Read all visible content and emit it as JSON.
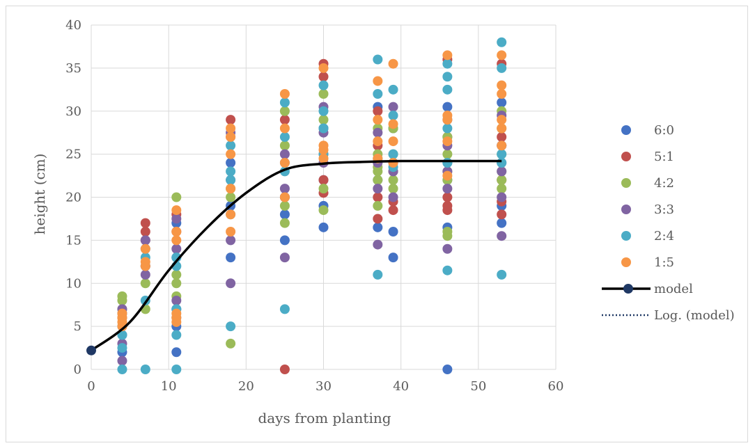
{
  "chart_data": {
    "type": "scatter",
    "xlabel": "days from planting",
    "ylabel": "height (cm)",
    "xlim": [
      0,
      60
    ],
    "ylim": [
      0,
      40
    ],
    "x_ticks": [
      "0",
      "10",
      "20",
      "30",
      "40",
      "50",
      "60"
    ],
    "y_ticks": [
      "0",
      "5",
      "10",
      "15",
      "20",
      "25",
      "30",
      "35",
      "40"
    ],
    "grid": true,
    "legend_position": "right",
    "series": [
      {
        "name": "6:0",
        "color": "#4472c4",
        "points": [
          [
            4,
            2
          ],
          [
            4,
            5
          ],
          [
            4,
            6.5
          ],
          [
            7,
            12
          ],
          [
            7,
            14
          ],
          [
            11,
            2
          ],
          [
            11,
            5
          ],
          [
            11,
            7
          ],
          [
            11,
            13
          ],
          [
            11,
            17
          ],
          [
            18,
            13
          ],
          [
            18,
            19
          ],
          [
            18,
            24
          ],
          [
            25,
            15
          ],
          [
            25,
            18
          ],
          [
            25,
            20
          ],
          [
            25,
            24
          ],
          [
            30,
            16.5
          ],
          [
            30,
            19
          ],
          [
            30,
            22
          ],
          [
            30,
            25
          ],
          [
            30,
            28
          ],
          [
            37,
            16.5
          ],
          [
            37,
            22
          ],
          [
            37,
            30.5
          ],
          [
            39,
            13
          ],
          [
            39,
            16
          ],
          [
            39,
            24
          ],
          [
            39,
            28
          ],
          [
            46,
            0
          ],
          [
            46,
            16.5
          ],
          [
            46,
            22
          ],
          [
            46,
            24
          ],
          [
            46,
            30.5
          ],
          [
            53,
            17
          ],
          [
            53,
            19
          ],
          [
            53,
            24
          ],
          [
            53,
            26
          ],
          [
            53,
            31
          ]
        ]
      },
      {
        "name": "5:1",
        "color": "#c0504d",
        "points": [
          [
            4,
            6
          ],
          [
            7,
            15
          ],
          [
            7,
            16
          ],
          [
            7,
            17
          ],
          [
            11,
            16
          ],
          [
            11,
            18
          ],
          [
            18,
            27
          ],
          [
            18,
            29
          ],
          [
            25,
            0
          ],
          [
            25,
            20
          ],
          [
            25,
            29
          ],
          [
            30,
            20.5
          ],
          [
            30,
            22
          ],
          [
            30,
            34
          ],
          [
            30,
            35.5
          ],
          [
            37,
            17.5
          ],
          [
            37,
            20
          ],
          [
            37,
            26
          ],
          [
            37,
            30
          ],
          [
            39,
            18.5
          ],
          [
            39,
            19.5
          ],
          [
            39,
            23
          ],
          [
            46,
            18.5
          ],
          [
            46,
            19
          ],
          [
            46,
            20
          ],
          [
            46,
            27
          ],
          [
            46,
            36
          ],
          [
            53,
            18
          ],
          [
            53,
            19.5
          ],
          [
            53,
            22
          ],
          [
            53,
            27
          ],
          [
            53,
            35.5
          ]
        ]
      },
      {
        "name": "4:2",
        "color": "#9bbb59",
        "points": [
          [
            4,
            7
          ],
          [
            4,
            8
          ],
          [
            4,
            8.5
          ],
          [
            7,
            7
          ],
          [
            7,
            10
          ],
          [
            11,
            8.5
          ],
          [
            11,
            10
          ],
          [
            11,
            11
          ],
          [
            11,
            20
          ],
          [
            18,
            3
          ],
          [
            18,
            20
          ],
          [
            18,
            21
          ],
          [
            25,
            17
          ],
          [
            25,
            19
          ],
          [
            25,
            26
          ],
          [
            25,
            30
          ],
          [
            30,
            18.5
          ],
          [
            30,
            21
          ],
          [
            30,
            29
          ],
          [
            30,
            32
          ],
          [
            37,
            19
          ],
          [
            37,
            22
          ],
          [
            37,
            23
          ],
          [
            37,
            23.5
          ],
          [
            37,
            25
          ],
          [
            37,
            28
          ],
          [
            39,
            21
          ],
          [
            39,
            22
          ],
          [
            39,
            25
          ],
          [
            39,
            28
          ],
          [
            46,
            15.5
          ],
          [
            46,
            16
          ],
          [
            46,
            22
          ],
          [
            46,
            23
          ],
          [
            46,
            25
          ],
          [
            46,
            27
          ],
          [
            53,
            21
          ],
          [
            53,
            22
          ],
          [
            53,
            23
          ],
          [
            53,
            25
          ],
          [
            53,
            28
          ],
          [
            53,
            30
          ]
        ]
      },
      {
        "name": "3:3",
        "color": "#8064a2",
        "points": [
          [
            4,
            1
          ],
          [
            4,
            3
          ],
          [
            4,
            4
          ],
          [
            4,
            7
          ],
          [
            7,
            11
          ],
          [
            7,
            12
          ],
          [
            7,
            15
          ],
          [
            11,
            6
          ],
          [
            11,
            8
          ],
          [
            11,
            14
          ],
          [
            11,
            17.5
          ],
          [
            18,
            10
          ],
          [
            18,
            15
          ],
          [
            18,
            22
          ],
          [
            18,
            27.5
          ],
          [
            25,
            13
          ],
          [
            25,
            21
          ],
          [
            25,
            25
          ],
          [
            30,
            24
          ],
          [
            30,
            27.5
          ],
          [
            30,
            30.5
          ],
          [
            37,
            14.5
          ],
          [
            37,
            21
          ],
          [
            37,
            24
          ],
          [
            37,
            27.5
          ],
          [
            39,
            20
          ],
          [
            39,
            23
          ],
          [
            39,
            24
          ],
          [
            39,
            30.5
          ],
          [
            46,
            14
          ],
          [
            46,
            21
          ],
          [
            46,
            23
          ],
          [
            46,
            26
          ],
          [
            46,
            29
          ],
          [
            53,
            15.5
          ],
          [
            53,
            20
          ],
          [
            53,
            23
          ],
          [
            53,
            26
          ],
          [
            53,
            29.5
          ]
        ]
      },
      {
        "name": "2:4",
        "color": "#4bacc6",
        "points": [
          [
            4,
            0
          ],
          [
            4,
            2.5
          ],
          [
            4,
            4
          ],
          [
            7,
            0
          ],
          [
            7,
            8
          ],
          [
            7,
            13
          ],
          [
            11,
            0
          ],
          [
            11,
            4
          ],
          [
            11,
            7
          ],
          [
            11,
            12
          ],
          [
            11,
            13
          ],
          [
            18,
            5
          ],
          [
            18,
            18
          ],
          [
            18,
            22
          ],
          [
            18,
            23
          ],
          [
            18,
            26
          ],
          [
            25,
            7
          ],
          [
            25,
            23
          ],
          [
            25,
            27
          ],
          [
            25,
            31
          ],
          [
            30,
            25
          ],
          [
            30,
            28
          ],
          [
            30,
            30
          ],
          [
            30,
            33
          ],
          [
            37,
            11
          ],
          [
            37,
            24.5
          ],
          [
            37,
            32
          ],
          [
            37,
            36
          ],
          [
            39,
            23.5
          ],
          [
            39,
            25
          ],
          [
            39,
            29.5
          ],
          [
            39,
            32.5
          ],
          [
            46,
            11.5
          ],
          [
            46,
            24
          ],
          [
            46,
            28
          ],
          [
            46,
            32.5
          ],
          [
            46,
            34
          ],
          [
            46,
            35.5
          ],
          [
            53,
            11
          ],
          [
            53,
            24
          ],
          [
            53,
            25
          ],
          [
            53,
            35
          ],
          [
            53,
            38
          ]
        ]
      },
      {
        "name": "1:5",
        "color": "#f79646",
        "points": [
          [
            4,
            5
          ],
          [
            4,
            5.5
          ],
          [
            4,
            6
          ],
          [
            4,
            6.5
          ],
          [
            7,
            12
          ],
          [
            7,
            12.5
          ],
          [
            7,
            14
          ],
          [
            11,
            5.5
          ],
          [
            11,
            6
          ],
          [
            11,
            6.5
          ],
          [
            11,
            15
          ],
          [
            11,
            16
          ],
          [
            11,
            18.5
          ],
          [
            18,
            16
          ],
          [
            18,
            18
          ],
          [
            18,
            21
          ],
          [
            18,
            25
          ],
          [
            18,
            27
          ],
          [
            18,
            28
          ],
          [
            25,
            20
          ],
          [
            25,
            24
          ],
          [
            25,
            28
          ],
          [
            25,
            32
          ],
          [
            30,
            24.5
          ],
          [
            30,
            25.5
          ],
          [
            30,
            26
          ],
          [
            30,
            35
          ],
          [
            37,
            24.5
          ],
          [
            37,
            26.5
          ],
          [
            37,
            29
          ],
          [
            37,
            33.5
          ],
          [
            39,
            24
          ],
          [
            39,
            26.5
          ],
          [
            39,
            28.5
          ],
          [
            39,
            35.5
          ],
          [
            46,
            22.5
          ],
          [
            46,
            26.5
          ],
          [
            46,
            29
          ],
          [
            46,
            29.5
          ],
          [
            46,
            36.5
          ],
          [
            53,
            26
          ],
          [
            53,
            28
          ],
          [
            53,
            29
          ],
          [
            53,
            32
          ],
          [
            53,
            33
          ],
          [
            53,
            36.5
          ]
        ]
      }
    ],
    "model": {
      "name": "model",
      "color": "#000000",
      "marker_color": "#1f3864",
      "points": [
        [
          0,
          2.2
        ],
        [
          5,
          5.5
        ],
        [
          10,
          11.5
        ],
        [
          15,
          16.5
        ],
        [
          20,
          20.5
        ],
        [
          25,
          23.2
        ],
        [
          30,
          23.9
        ],
        [
          35,
          24.1
        ],
        [
          40,
          24.2
        ],
        [
          45,
          24.2
        ],
        [
          50,
          24.2
        ],
        [
          53,
          24.2
        ]
      ]
    },
    "trendline": {
      "name": "Log. (model)",
      "color": "#1f3864"
    }
  }
}
